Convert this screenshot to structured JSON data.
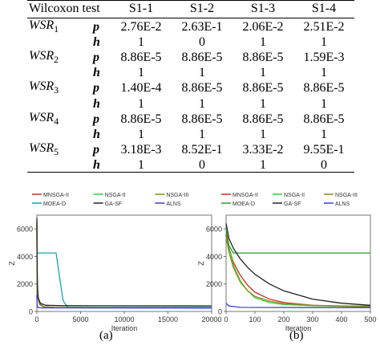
{
  "table": {
    "header": [
      "Wilcoxon test",
      "S1-1",
      "S1-2",
      "S1-3",
      "S1-4"
    ],
    "groups": [
      {
        "base": "WSR",
        "sub": "1",
        "rows": [
          {
            "label": "p",
            "values": [
              "2.76E-2",
              "2.63E-1",
              "2.06E-2",
              "2.51E-2"
            ]
          },
          {
            "label": "h",
            "values": [
              "1",
              "0",
              "1",
              "1"
            ]
          }
        ]
      },
      {
        "base": "WSR",
        "sub": "2",
        "rows": [
          {
            "label": "p",
            "values": [
              "8.86E-5",
              "8.86E-5",
              "8.86E-5",
              "1.59E-3"
            ]
          },
          {
            "label": "h",
            "values": [
              "1",
              "1",
              "1",
              "1"
            ]
          }
        ]
      },
      {
        "base": "WSR",
        "sub": "3",
        "rows": [
          {
            "label": "p",
            "values": [
              "1.40E-4",
              "8.86E-5",
              "8.86E-5",
              "8.86E-5"
            ]
          },
          {
            "label": "h",
            "values": [
              "1",
              "1",
              "1",
              "1"
            ]
          }
        ]
      },
      {
        "base": "WSR",
        "sub": "4",
        "rows": [
          {
            "label": "p",
            "values": [
              "8.86E-5",
              "8.86E-5",
              "8.86E-5",
              "8.86E-5"
            ]
          },
          {
            "label": "h",
            "values": [
              "1",
              "1",
              "1",
              "1"
            ]
          }
        ]
      },
      {
        "base": "WSR",
        "sub": "5",
        "rows": [
          {
            "label": "p",
            "values": [
              "3.18E-3",
              "8.52E-1",
              "3.33E-2",
              "9.55E-1"
            ]
          },
          {
            "label": "h",
            "values": [
              "1",
              "0",
              "1",
              "0"
            ]
          }
        ]
      }
    ]
  },
  "captions": {
    "a": "(a)",
    "b": "(b)"
  },
  "chart_data": [
    {
      "type": "line",
      "panel": "a",
      "title": "",
      "xlabel": "Iteration",
      "ylabel": "Z",
      "xlim": [
        0,
        20000
      ],
      "ylim": [
        0,
        7000
      ],
      "xticks": [
        0,
        5000,
        10000,
        15000,
        20000
      ],
      "yticks": [
        0,
        2000,
        4000,
        6000
      ],
      "legend_position": "top",
      "series": [
        {
          "name": "MNSGA-II",
          "color": "#d62728",
          "x": [
            0,
            30,
            100,
            300,
            800,
            2000,
            5000,
            20000
          ],
          "y": [
            6500,
            2500,
            1200,
            600,
            350,
            300,
            290,
            280
          ]
        },
        {
          "name": "NSGA-II",
          "color": "#33cc33",
          "x": [
            0,
            30,
            100,
            300,
            800,
            2000,
            5000,
            20000
          ],
          "y": [
            6600,
            2400,
            1100,
            550,
            330,
            290,
            280,
            275
          ]
        },
        {
          "name": "NSGA-III",
          "color": "#8c8c1a",
          "x": [
            0,
            30,
            100,
            300,
            800,
            2000,
            5000,
            20000
          ],
          "y": [
            6300,
            2200,
            1000,
            500,
            320,
            290,
            280,
            275
          ]
        },
        {
          "name": "MOEA-D",
          "color": "#17a3b0",
          "x": [
            0,
            200,
            1000,
            2200,
            2600,
            3000,
            3500,
            20000
          ],
          "y": [
            4250,
            4250,
            4250,
            4250,
            2500,
            800,
            300,
            300
          ]
        },
        {
          "name": "GA-SF",
          "color": "#222222",
          "x": [
            0,
            20,
            60,
            150,
            400,
            1000,
            3000,
            20000
          ],
          "y": [
            6800,
            4000,
            2000,
            1000,
            600,
            450,
            420,
            400
          ]
        },
        {
          "name": "ALNS",
          "color": "#3b3bd6",
          "x": [
            0,
            20,
            100,
            500,
            20000
          ],
          "y": [
            1200,
            500,
            300,
            260,
            250
          ]
        }
      ]
    },
    {
      "type": "line",
      "panel": "b",
      "title": "",
      "xlabel": "Iteration",
      "ylabel": "Z",
      "xlim": [
        0,
        500
      ],
      "ylim": [
        0,
        7000
      ],
      "xticks": [
        0,
        100,
        200,
        300,
        400,
        500
      ],
      "yticks": [
        0,
        2000,
        4000,
        6000
      ],
      "legend_position": "top",
      "series": [
        {
          "name": "MNSGA-II",
          "color": "#d62728",
          "x": [
            0,
            10,
            25,
            50,
            75,
            100,
            150,
            200,
            300,
            400,
            500
          ],
          "y": [
            5600,
            4600,
            3600,
            2600,
            1900,
            1400,
            900,
            650,
            450,
            380,
            350
          ]
        },
        {
          "name": "NSGA-II",
          "color": "#33cc33",
          "x": [
            0,
            10,
            25,
            50,
            75,
            100,
            150,
            200,
            300,
            400,
            500
          ],
          "y": [
            6000,
            4700,
            3400,
            2200,
            1500,
            1000,
            650,
            500,
            420,
            390,
            370
          ]
        },
        {
          "name": "NSGA-III",
          "color": "#8c8c1a",
          "x": [
            0,
            10,
            25,
            50,
            75,
            100,
            150,
            200,
            300,
            400,
            500
          ],
          "y": [
            5400,
            4300,
            3200,
            2100,
            1500,
            1100,
            750,
            580,
            450,
            410,
            390
          ]
        },
        {
          "name": "MOEA-D",
          "color": "#2e9e2e",
          "x": [
            0,
            10,
            25,
            500
          ],
          "y": [
            5900,
            4800,
            4250,
            4250
          ]
        },
        {
          "name": "GA-SF",
          "color": "#222222",
          "x": [
            0,
            10,
            25,
            50,
            75,
            100,
            150,
            200,
            300,
            400,
            500
          ],
          "y": [
            6400,
            5300,
            4600,
            3800,
            3200,
            2700,
            2000,
            1500,
            900,
            600,
            450
          ]
        },
        {
          "name": "ALNS",
          "color": "#3b3bd6",
          "x": [
            0,
            10,
            50,
            500
          ],
          "y": [
            600,
            400,
            300,
            280
          ]
        }
      ]
    }
  ]
}
